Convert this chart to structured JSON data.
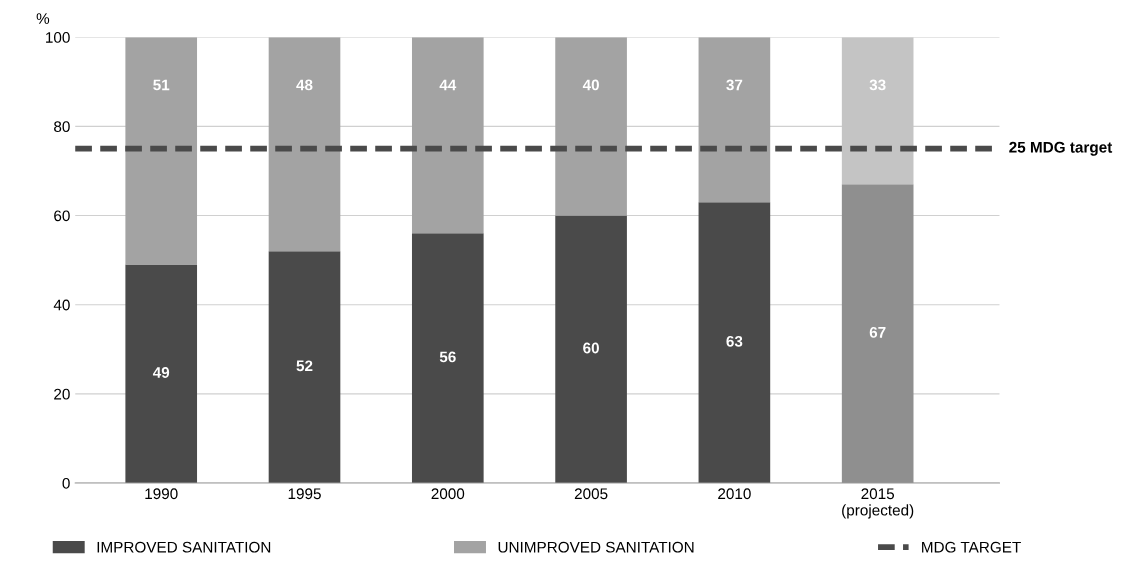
{
  "chart_data": {
    "type": "bar",
    "stacked": true,
    "ylabel": "%",
    "categories": [
      "1990",
      "1995",
      "2000",
      "2005",
      "2010",
      "2015\n(projected)"
    ],
    "series": [
      {
        "name": "IMPROVED SANITATION",
        "color": "#4a4a4a",
        "colors": [
          "#4a4a4a",
          "#4a4a4a",
          "#4a4a4a",
          "#4a4a4a",
          "#4a4a4a",
          "#8f8f8f"
        ],
        "values": [
          49,
          52,
          56,
          60,
          63,
          67
        ]
      },
      {
        "name": "UNIMPROVED SANITATION",
        "color": "#a3a3a3",
        "colors": [
          "#a3a3a3",
          "#a3a3a3",
          "#a3a3a3",
          "#a3a3a3",
          "#a3a3a3",
          "#c4c4c4"
        ],
        "values": [
          51,
          48,
          44,
          40,
          37,
          33
        ]
      }
    ],
    "ylim": [
      0,
      100
    ],
    "yticks": [
      0,
      20,
      40,
      60,
      80,
      100
    ],
    "grid": "y",
    "legend": "bottom",
    "data_labels": true,
    "ref_lines": [
      {
        "axis": "y",
        "value": 75,
        "label": "MDG TARGET",
        "color": "#4a4a4a",
        "line_style": "dashed"
      }
    ],
    "annotations": [
      "25 MDG target"
    ]
  }
}
